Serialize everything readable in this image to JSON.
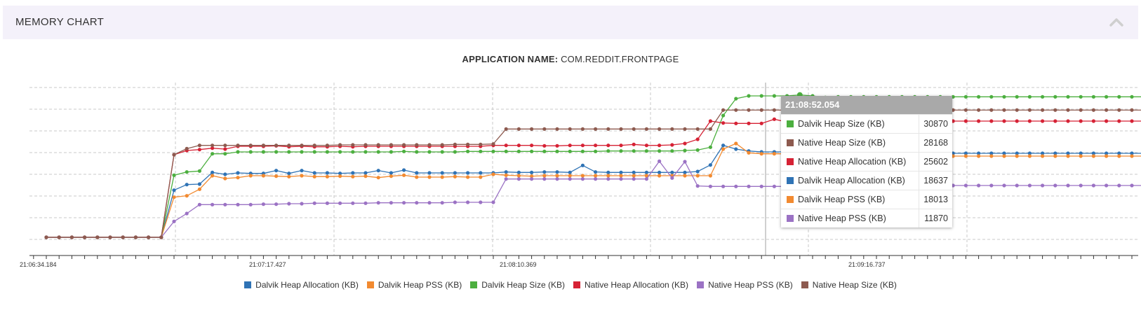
{
  "panel": {
    "title": "MEMORY CHART",
    "collapse_icon": "chevron-up-icon"
  },
  "app": {
    "label": "APPLICATION NAME:",
    "name": "COM.REDDIT.FRONTPAGE"
  },
  "tooltip": {
    "time": "21:08:52.054",
    "rows": [
      {
        "label": "Dalvik Heap Size (KB)",
        "value": "30870",
        "color": "#4caf3f"
      },
      {
        "label": "Native Heap Size (KB)",
        "value": "28168",
        "color": "#8d5a4f"
      },
      {
        "label": "Native Heap Allocation (KB)",
        "value": "25602",
        "color": "#d62235"
      },
      {
        "label": "Dalvik Heap Allocation (KB)",
        "value": "18637",
        "color": "#2f73b5"
      },
      {
        "label": "Dalvik Heap PSS (KB)",
        "value": "18013",
        "color": "#f28a30"
      },
      {
        "label": "Native Heap PSS (KB)",
        "value": "11870",
        "color": "#9b72c4"
      }
    ]
  },
  "chart_data": {
    "type": "line",
    "x_tick_labels": [
      "21:06:34.184",
      "21:07:17.427",
      "21:08:10.369",
      "21:09:16.737"
    ],
    "grid": true,
    "legend_placement": "bottom",
    "series": [
      {
        "name": "Dalvik Heap Allocation (KB)",
        "color": "#2f73b5",
        "values": [
          900,
          900,
          900,
          900,
          900,
          900,
          900,
          900,
          900,
          900,
          11000,
          12200,
          12300,
          14800,
          14400,
          14700,
          14600,
          14600,
          15200,
          14600,
          15200,
          14700,
          14700,
          14600,
          14700,
          14700,
          15200,
          14700,
          15300,
          14700,
          14700,
          14700,
          14700,
          14700,
          14700,
          14700,
          14900,
          14800,
          14800,
          14900,
          14900,
          14800,
          16300,
          14900,
          14800,
          14800,
          14800,
          14800,
          14800,
          14800,
          14800,
          15000,
          16400,
          20600,
          19800,
          19400,
          19200,
          19200,
          19200,
          19200,
          19400,
          19100,
          18900,
          18637,
          18800,
          18800,
          18900,
          18900,
          18900,
          18900,
          18900,
          18900,
          18900,
          18900,
          18900,
          18900,
          18900,
          18900,
          18900,
          18900,
          18900,
          18900,
          18900,
          18900,
          18900,
          18900,
          18900,
          18900,
          18900,
          18900,
          18900,
          18900,
          18900,
          18900,
          18900,
          18900,
          18900,
          18900,
          18900,
          18900,
          18900,
          18900,
          18900,
          18900,
          18900,
          18900,
          18900,
          18900,
          18900,
          18900,
          18900
        ]
      },
      {
        "name": "Dalvik Heap PSS (KB)",
        "color": "#f28a30",
        "values": [
          900,
          900,
          900,
          900,
          900,
          900,
          900,
          900,
          900,
          900,
          9500,
          9800,
          11200,
          14100,
          13500,
          13700,
          14100,
          14100,
          14000,
          13900,
          14100,
          13900,
          13900,
          14000,
          13900,
          14000,
          13700,
          14000,
          14200,
          13800,
          13800,
          13800,
          13900,
          13800,
          13800,
          14400,
          14200,
          14100,
          14000,
          14100,
          14100,
          14100,
          14100,
          14100,
          14100,
          14100,
          14100,
          14100,
          14100,
          14100,
          14100,
          14100,
          14100,
          19800,
          21000,
          19000,
          18800,
          18800,
          18800,
          18800,
          20400,
          18700,
          18400,
          18013,
          18300,
          18300,
          18300,
          18300,
          18300,
          18300,
          18300,
          18300,
          18300,
          18300,
          18300,
          18300,
          18300,
          18300,
          18300,
          18300,
          18300,
          18300,
          18300,
          18300,
          18300,
          18300,
          18300,
          18300,
          18300,
          18300,
          18300,
          18300,
          18300,
          18300,
          18300,
          18300,
          18300,
          18300,
          18300,
          18300,
          18300,
          18300,
          18300,
          18300,
          18300,
          18300,
          18300,
          18300,
          18300,
          18300,
          18300
        ]
      },
      {
        "name": "Dalvik Heap Size (KB)",
        "color": "#4caf3f",
        "values": [
          900,
          900,
          900,
          900,
          900,
          900,
          900,
          900,
          900,
          900,
          14200,
          14900,
          15100,
          18800,
          18800,
          19200,
          19200,
          19200,
          19200,
          19200,
          19200,
          19200,
          19200,
          19200,
          19200,
          19200,
          19200,
          19200,
          19300,
          19200,
          19200,
          19200,
          19200,
          19300,
          19300,
          19300,
          19300,
          19300,
          19300,
          19300,
          19300,
          19300,
          19300,
          19300,
          19400,
          19400,
          19400,
          19400,
          19400,
          19400,
          19500,
          19600,
          20200,
          27000,
          30600,
          31200,
          31200,
          31200,
          31200,
          31400,
          31200,
          30870,
          31000,
          31000,
          31000,
          31000,
          31000,
          31000,
          31000,
          31000,
          31000,
          31000,
          31000,
          31000,
          31000,
          31000,
          31000,
          31000,
          31000,
          31000,
          31000,
          31000,
          31000,
          31000,
          31000,
          31000,
          31000,
          31000,
          31000,
          31000,
          31000,
          31000,
          31000,
          31000,
          31000,
          31000,
          31000,
          31000,
          31000,
          31000,
          31000,
          31000,
          31000,
          31000,
          31000,
          31000,
          31000,
          31000,
          31000,
          31000,
          31000,
          31000
        ]
      },
      {
        "name": "Native Heap Allocation (KB)",
        "color": "#d62235",
        "values": [
          900,
          900,
          900,
          900,
          900,
          900,
          900,
          900,
          900,
          900,
          18600,
          19500,
          19700,
          20000,
          19800,
          20400,
          20400,
          20400,
          20500,
          20300,
          20400,
          20300,
          20300,
          20400,
          20300,
          20400,
          20400,
          20400,
          20400,
          20400,
          20400,
          20400,
          20400,
          20400,
          20400,
          20600,
          20600,
          20600,
          20600,
          20500,
          20500,
          20600,
          20600,
          20600,
          20600,
          20600,
          20800,
          20600,
          20600,
          20700,
          21000,
          21900,
          25800,
          25400,
          25300,
          25300,
          25300,
          26200,
          25602,
          26100,
          25600,
          25700,
          25800,
          25800,
          25800,
          25800,
          25800,
          25800,
          25800,
          25800,
          25800,
          25800,
          25800,
          25800,
          25800,
          25800,
          25800,
          25800,
          25800,
          25800,
          25800,
          25800,
          25800,
          25800,
          25800,
          25800,
          25800,
          25800,
          25800,
          25800,
          25800,
          25800,
          25800,
          25800,
          25800,
          25800,
          25800,
          25800,
          25800,
          25800,
          25800,
          25800,
          25800,
          25800,
          25800,
          25800,
          25800,
          25800,
          25800,
          25800,
          25800,
          25800
        ]
      },
      {
        "name": "Native Heap PSS (KB)",
        "color": "#9b72c4",
        "values": [
          900,
          900,
          900,
          900,
          900,
          900,
          900,
          900,
          900,
          900,
          4300,
          6000,
          7900,
          7900,
          7900,
          7900,
          7900,
          8000,
          8000,
          8100,
          8100,
          8200,
          8200,
          8200,
          8200,
          8200,
          8300,
          8300,
          8300,
          8300,
          8300,
          8300,
          8400,
          8400,
          8400,
          8400,
          13400,
          13400,
          13400,
          13400,
          13400,
          13400,
          13400,
          13400,
          13400,
          13400,
          13400,
          13400,
          17200,
          13600,
          17100,
          11900,
          11800,
          11800,
          11800,
          11800,
          11800,
          11800,
          11800,
          11870,
          12000,
          12000,
          12000,
          12000,
          12000,
          12000,
          12000,
          12000,
          12000,
          12000,
          12000,
          12000,
          12000,
          12000,
          12000,
          12000,
          12000,
          12000,
          12000,
          12000,
          12000,
          12000,
          12000,
          12000,
          12000,
          12000,
          12000,
          12000,
          12000,
          12000,
          12000,
          12000,
          12000,
          12000,
          12000,
          12000,
          12000,
          12000,
          12000,
          12000,
          12000,
          12000,
          12000,
          12000,
          12000,
          12000,
          12000,
          12000,
          12000,
          12000,
          12000,
          12000,
          12000
        ]
      },
      {
        "name": "Native Heap Size (KB)",
        "color": "#8d5a4f",
        "values": [
          900,
          900,
          900,
          900,
          900,
          900,
          900,
          900,
          900,
          900,
          18600,
          19900,
          20600,
          20600,
          20600,
          20600,
          20600,
          20600,
          20600,
          20600,
          20600,
          20600,
          20600,
          20700,
          20700,
          20700,
          20700,
          20700,
          20700,
          20700,
          20700,
          20700,
          20800,
          20800,
          20800,
          20900,
          24100,
          24100,
          24100,
          24100,
          24100,
          24100,
          24100,
          24100,
          24100,
          24100,
          24100,
          24100,
          24100,
          24100,
          24100,
          24100,
          24100,
          28168,
          28168,
          28168,
          28168,
          28168,
          28168,
          28168,
          28168,
          28168,
          28168,
          28168,
          28168,
          28168,
          28168,
          28168,
          28168,
          28168,
          28168,
          28168,
          28168,
          28168,
          28168,
          28168,
          28168,
          28168,
          28168,
          28168,
          28168,
          28168,
          28168,
          28168,
          28168,
          28168,
          28168,
          28168,
          28168,
          28168,
          28168,
          28168,
          28168,
          28168,
          28168,
          28168,
          28168,
          28168,
          28168,
          28168,
          28168,
          28168,
          28168,
          28168,
          28168,
          28168,
          28168,
          28168,
          28168,
          28168,
          28168,
          28168
        ]
      }
    ]
  }
}
